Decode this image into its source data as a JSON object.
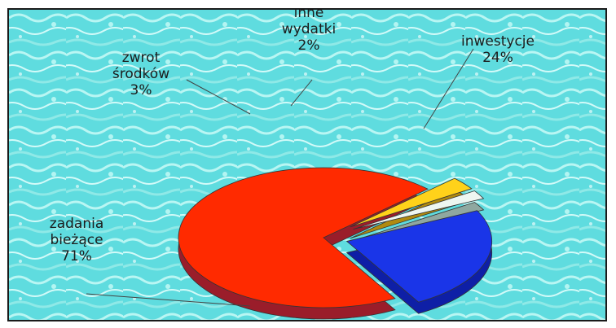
{
  "chart_data": {
    "type": "pie",
    "style": "3d-exploded",
    "title": "",
    "background": "water-texture",
    "slices": [
      {
        "label_lines": [
          "inwestycje"
        ],
        "value": 24,
        "display": "24%",
        "color": "#1a35e8",
        "side": "#0e1fa6",
        "label_color": "#1646d6"
      },
      {
        "label_lines": [
          "zadania",
          "bieżące"
        ],
        "value": 71,
        "display": "71%",
        "color": "#ff2a00",
        "side": "#9a1d2a",
        "label_color": "#1c1c1c"
      },
      {
        "label_lines": [
          "zwrot",
          "środków"
        ],
        "value": 3,
        "display": "3%",
        "color": "#ffd21a",
        "side": "#b08a10",
        "label_color": "#1c1c1c"
      },
      {
        "label_lines": [
          "inne",
          "wydatki"
        ],
        "value": 2,
        "display": "2%",
        "color": "#eef6f1",
        "side": "#8fa8a0",
        "label_color": "#1c1c1c"
      }
    ]
  }
}
